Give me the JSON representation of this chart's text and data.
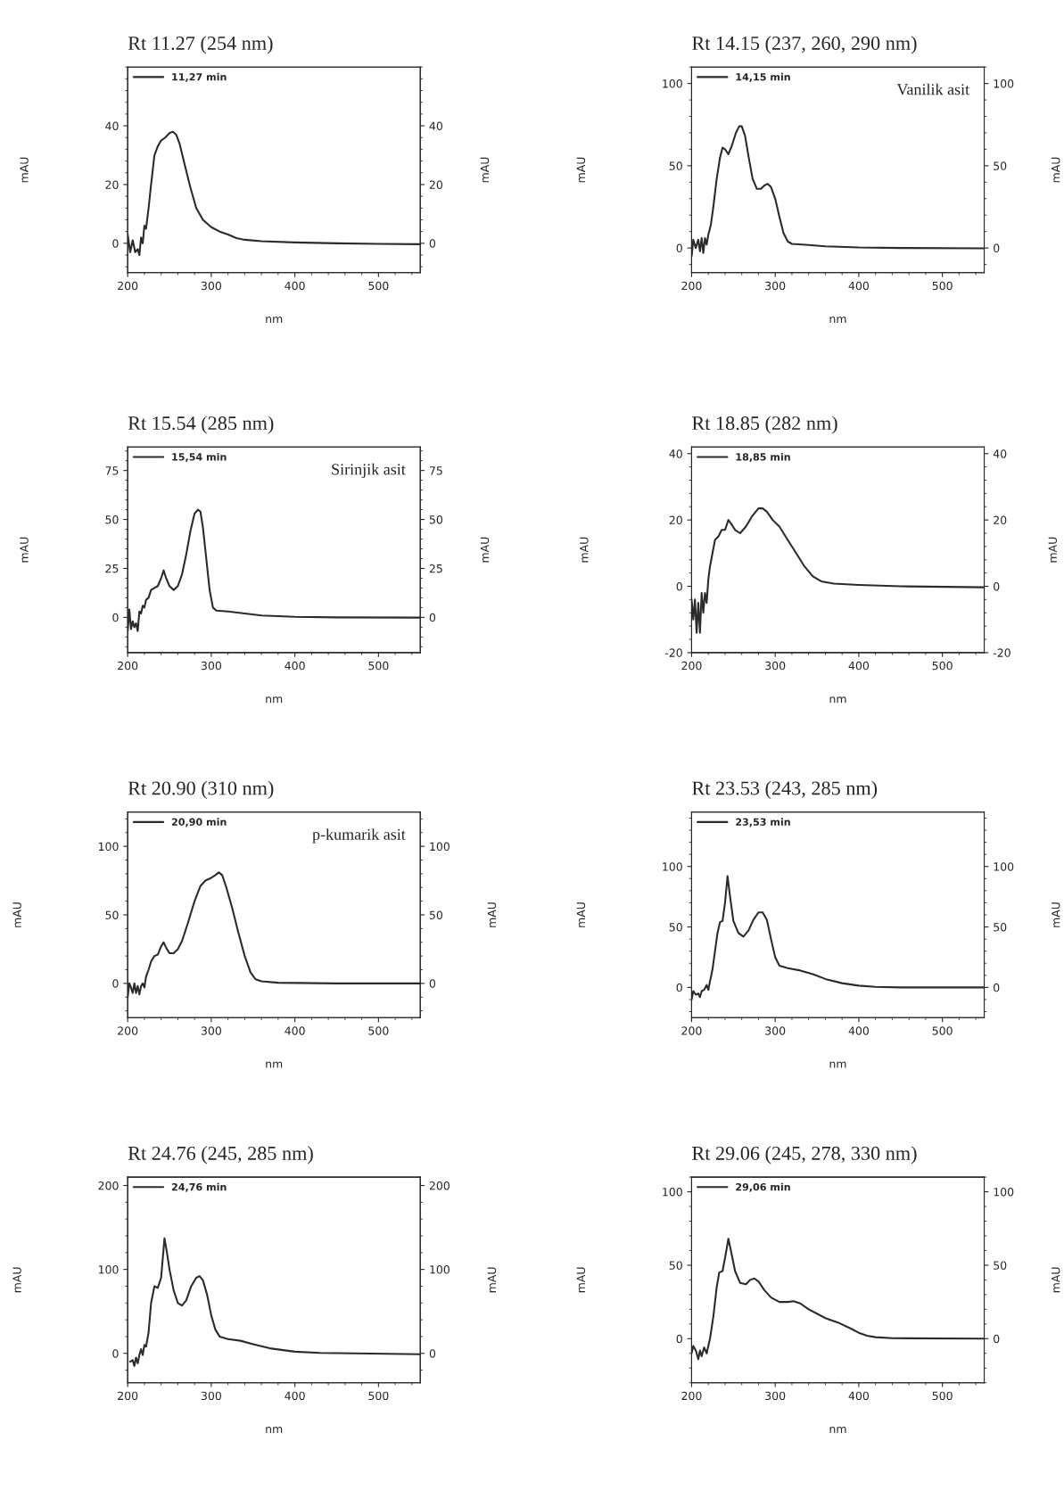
{
  "chart_data": [
    {
      "type": "line",
      "title": "Rt 11.27 (254 nm)",
      "xlabel": "nm",
      "ylabel": "mAU",
      "y2label": "mAU",
      "xlim": [
        200,
        550
      ],
      "xticks": [
        200,
        300,
        400,
        500
      ],
      "ylim": [
        -10,
        60
      ],
      "yticks": [
        0,
        20,
        40
      ],
      "y2lim": [
        -10,
        60
      ],
      "y2ticks": [
        0,
        20,
        40
      ],
      "legend": "top left",
      "series": [
        {
          "name": "11,27 min",
          "color": "#2b2b2b",
          "x": [
            200,
            203,
            206,
            209,
            212,
            214,
            216,
            218,
            220,
            222,
            225,
            228,
            232,
            236,
            240,
            245,
            250,
            254,
            258,
            262,
            268,
            275,
            282,
            290,
            300,
            310,
            320,
            330,
            340,
            360,
            400,
            450,
            500,
            550
          ],
          "values": [
            3,
            -3,
            1,
            -3,
            -2,
            -4,
            2,
            0,
            6,
            5,
            12,
            20,
            30,
            33,
            35,
            36,
            37.5,
            38,
            37,
            34,
            27,
            19,
            12,
            8,
            5.5,
            4,
            3,
            1.8,
            1.2,
            0.7,
            0.3,
            0,
            -0.2,
            -0.3
          ]
        }
      ]
    },
    {
      "type": "line",
      "title": "Rt 14.15 (237, 260, 290 nm)",
      "xlabel": "nm",
      "ylabel": "mAU",
      "y2label": "mAU",
      "xlim": [
        200,
        550
      ],
      "xticks": [
        200,
        300,
        400,
        500
      ],
      "ylim": [
        -15,
        110
      ],
      "yticks": [
        0,
        50,
        100
      ],
      "y2lim": [
        -15,
        110
      ],
      "y2ticks": [
        0,
        50,
        100
      ],
      "legend": "top left",
      "annotations": [
        "Vanilik asit"
      ],
      "series": [
        {
          "name": "14,15 min",
          "color": "#2b2b2b",
          "x": [
            200,
            202,
            205,
            208,
            210,
            212,
            214,
            216,
            218,
            220,
            223,
            226,
            230,
            234,
            237,
            240,
            244,
            248,
            253,
            257,
            260,
            264,
            268,
            273,
            278,
            283,
            287,
            291,
            295,
            300,
            305,
            310,
            315,
            320,
            340,
            360,
            400,
            450,
            550
          ],
          "values": [
            -5,
            5,
            0,
            5,
            -2,
            6,
            -3,
            6,
            2,
            8,
            14,
            25,
            42,
            55,
            61,
            60,
            57,
            62,
            70,
            74,
            74,
            68,
            56,
            42,
            36,
            36,
            38,
            39,
            37,
            30,
            19,
            9,
            4,
            2.5,
            1.8,
            1,
            0.3,
            0,
            -0.2
          ]
        }
      ]
    },
    {
      "type": "line",
      "title": "Rt 15.54 (285 nm)",
      "xlabel": "nm",
      "ylabel": "mAU",
      "y2label": "mAU",
      "xlim": [
        200,
        550
      ],
      "xticks": [
        200,
        300,
        400,
        500
      ],
      "ylim": [
        -18,
        87
      ],
      "yticks": [
        0,
        25,
        50,
        75
      ],
      "y2lim": [
        -18,
        87
      ],
      "y2ticks": [
        0,
        25,
        50,
        75
      ],
      "legend": "top left",
      "annotations": [
        "Sirinjik asit"
      ],
      "series": [
        {
          "name": "15,54 min",
          "color": "#2b2b2b",
          "x": [
            200,
            202,
            204,
            206,
            208,
            210,
            212,
            214,
            216,
            218,
            220,
            222,
            225,
            228,
            232,
            236,
            240,
            243,
            246,
            250,
            255,
            260,
            265,
            270,
            275,
            280,
            284,
            287,
            290,
            294,
            298,
            302,
            306,
            320,
            340,
            360,
            400,
            450,
            550
          ],
          "values": [
            -7,
            4,
            -6,
            -2,
            -5,
            -3,
            -7,
            3,
            2,
            6,
            5,
            9,
            10,
            14,
            15,
            16,
            20,
            24,
            20,
            16,
            14,
            16,
            22,
            32,
            44,
            53,
            55,
            54,
            46,
            30,
            14,
            5,
            3.5,
            3,
            2,
            1,
            0.3,
            0,
            -0.1
          ]
        }
      ]
    },
    {
      "type": "line",
      "title": "Rt 18.85 (282 nm)",
      "xlabel": "nm",
      "ylabel": "mAU",
      "y2label": "mAU",
      "xlim": [
        200,
        550
      ],
      "xticks": [
        200,
        300,
        400,
        500
      ],
      "ylim": [
        -20,
        42
      ],
      "yticks": [
        -20,
        0,
        20,
        40
      ],
      "y2lim": [
        -20,
        42
      ],
      "y2ticks": [
        -20,
        0,
        20,
        40
      ],
      "legend": "top left",
      "series": [
        {
          "name": "18,85 min",
          "color": "#2b2b2b",
          "x": [
            200,
            202,
            204,
            206,
            208,
            210,
            212,
            214,
            216,
            218,
            220,
            222,
            225,
            228,
            232,
            236,
            240,
            244,
            247,
            252,
            258,
            265,
            272,
            280,
            285,
            290,
            297,
            305,
            315,
            325,
            335,
            345,
            355,
            370,
            400,
            450,
            550
          ],
          "values": [
            -4,
            -10,
            -4,
            -14,
            -5,
            -14,
            -2,
            -8,
            -2,
            -5,
            2,
            6,
            10,
            14,
            15,
            17,
            17,
            20,
            19,
            17,
            16,
            18,
            21,
            23.5,
            23.5,
            22.5,
            20,
            18,
            14,
            10,
            6,
            3,
            1.5,
            0.8,
            0.4,
            0,
            -0.3
          ]
        }
      ]
    },
    {
      "type": "line",
      "title": "Rt 20.90 (310 nm)",
      "xlabel": "nm",
      "ylabel": "mAU",
      "y2label": "mAU",
      "xlim": [
        200,
        550
      ],
      "xticks": [
        200,
        300,
        400,
        500
      ],
      "ylim": [
        -25,
        125
      ],
      "yticks": [
        0,
        50,
        100
      ],
      "y2lim": [
        -25,
        125
      ],
      "y2ticks": [
        0,
        50,
        100
      ],
      "legend": "top left",
      "annotations": [
        "p-kumarik asit"
      ],
      "series": [
        {
          "name": "20,90 min",
          "color": "#2b2b2b",
          "x": [
            200,
            202,
            204,
            206,
            208,
            210,
            212,
            214,
            216,
            218,
            220,
            222,
            225,
            228,
            232,
            236,
            240,
            243,
            246,
            250,
            255,
            260,
            265,
            272,
            280,
            287,
            293,
            300,
            305,
            309,
            313,
            318,
            325,
            332,
            340,
            347,
            353,
            360,
            380,
            450,
            550
          ],
          "values": [
            -10,
            0,
            -3,
            -7,
            0,
            -7,
            -2,
            -8,
            -2,
            0,
            -3,
            5,
            10,
            16,
            20,
            21,
            27,
            30,
            26,
            22,
            22,
            25,
            31,
            44,
            60,
            71,
            75,
            77,
            79,
            81,
            79,
            70,
            55,
            38,
            20,
            8,
            3,
            1.5,
            0.5,
            0,
            0
          ]
        }
      ]
    },
    {
      "type": "line",
      "title": "Rt 23.53 (243, 285 nm)",
      "xlabel": "nm",
      "ylabel": "mAU",
      "y2label": "mAU",
      "xlim": [
        200,
        550
      ],
      "xticks": [
        200,
        300,
        400,
        500
      ],
      "ylim": [
        -25,
        145
      ],
      "yticks": [
        0,
        50,
        100
      ],
      "y2lim": [
        -25,
        145
      ],
      "y2ticks": [
        0,
        50,
        100
      ],
      "legend": "top left",
      "series": [
        {
          "name": "23,53 min",
          "color": "#2b2b2b",
          "x": [
            200,
            202,
            205,
            208,
            210,
            212,
            215,
            218,
            220,
            222,
            225,
            228,
            231,
            234,
            237,
            240,
            243,
            246,
            250,
            256,
            262,
            268,
            274,
            280,
            285,
            290,
            295,
            300,
            305,
            315,
            330,
            345,
            360,
            380,
            400,
            420,
            450,
            550
          ],
          "values": [
            -10,
            -3,
            -6,
            -5,
            -8,
            -3,
            -2,
            2,
            -2,
            5,
            15,
            30,
            45,
            54,
            55,
            70,
            92,
            75,
            55,
            45,
            42,
            47,
            56,
            62,
            62,
            56,
            40,
            25,
            18,
            16,
            14,
            11,
            7,
            3.5,
            1.5,
            0.5,
            0,
            0
          ]
        }
      ]
    },
    {
      "type": "line",
      "title": "Rt 24.76 (245, 285 nm)",
      "xlabel": "nm",
      "ylabel": "mAU",
      "y2label": "mAU",
      "xlim": [
        200,
        550
      ],
      "xticks": [
        200,
        300,
        400,
        500
      ],
      "ylim": [
        -35,
        210
      ],
      "yticks": [
        0,
        100,
        200
      ],
      "y2lim": [
        -35,
        210
      ],
      "y2ticks": [
        0,
        100,
        200
      ],
      "legend": "top left",
      "series": [
        {
          "name": "24,76 min",
          "color": "#2b2b2b",
          "x": [
            203,
            206,
            208,
            210,
            212,
            214,
            216,
            218,
            220,
            222,
            225,
            228,
            232,
            236,
            240,
            244,
            247,
            250,
            255,
            260,
            265,
            270,
            276,
            282,
            286,
            290,
            295,
            300,
            305,
            310,
            320,
            335,
            350,
            370,
            400,
            430,
            470,
            550
          ],
          "values": [
            -10,
            -8,
            -15,
            -5,
            -12,
            -2,
            5,
            -2,
            10,
            8,
            25,
            60,
            80,
            78,
            90,
            137,
            120,
            100,
            75,
            60,
            57,
            63,
            80,
            90,
            92,
            87,
            70,
            45,
            28,
            20,
            17,
            15,
            11,
            6,
            2,
            0.5,
            0,
            -1
          ]
        }
      ]
    },
    {
      "type": "line",
      "title": "Rt 29.06 (245, 278, 330 nm)",
      "xlabel": "nm",
      "ylabel": "mAU",
      "y2label": "mAU",
      "xlim": [
        200,
        550
      ],
      "xticks": [
        200,
        300,
        400,
        500
      ],
      "ylim": [
        -30,
        110
      ],
      "yticks": [
        0,
        50,
        100
      ],
      "y2lim": [
        -30,
        110
      ],
      "y2ticks": [
        0,
        50,
        100
      ],
      "legend": "top left",
      "series": [
        {
          "name": "29,06 min",
          "color": "#2b2b2b",
          "x": [
            200,
            202,
            205,
            208,
            210,
            212,
            215,
            218,
            220,
            222,
            226,
            230,
            233,
            237,
            240,
            244,
            247,
            252,
            258,
            265,
            270,
            275,
            280,
            287,
            295,
            305,
            315,
            322,
            330,
            340,
            350,
            360,
            375,
            390,
            400,
            410,
            420,
            440,
            550
          ],
          "values": [
            -10,
            -5,
            -8,
            -14,
            -8,
            -12,
            -6,
            -10,
            -5,
            0,
            15,
            35,
            45,
            46,
            55,
            68,
            60,
            46,
            38,
            37,
            40,
            41,
            39,
            33,
            28,
            25,
            25,
            25.5,
            24,
            20,
            17,
            14,
            11,
            7,
            4,
            2,
            1,
            0.3,
            0
          ]
        }
      ]
    }
  ]
}
